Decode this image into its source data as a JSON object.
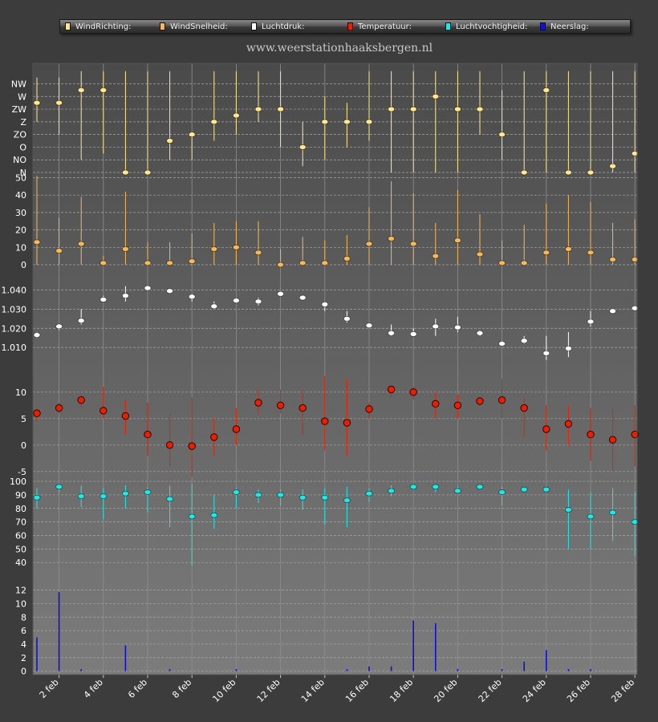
{
  "site": {
    "title": "www.weerstationhaaksbergen.nl"
  },
  "legend": [
    {
      "label": "WindRichting:",
      "color": "#ffe890"
    },
    {
      "label": "WindSnelheid:",
      "color": "#f5b85a"
    },
    {
      "label": "Luchtdruk:",
      "color": "#ffffff"
    },
    {
      "label": "Temperatuur:",
      "color": "#e82000"
    },
    {
      "label": "Luchtvochtigheid:",
      "color": "#20e8e8"
    },
    {
      "label": "Neerslag:",
      "color": "#1010d0"
    }
  ],
  "chart_data": {
    "type": "scatter",
    "x_days": [
      1,
      2,
      3,
      4,
      5,
      6,
      7,
      8,
      9,
      10,
      11,
      12,
      13,
      14,
      15,
      16,
      17,
      18,
      19,
      20,
      21,
      22,
      23,
      24,
      25,
      26,
      27,
      28
    ],
    "x_tick_labels": [
      "2 feb",
      "4 feb",
      "6 feb",
      "8 feb",
      "10 feb",
      "12 feb",
      "14 feb",
      "16 feb",
      "18 feb",
      "20 feb",
      "22 feb",
      "24 feb",
      "26 feb",
      "28 feb"
    ],
    "grid": true,
    "panels": [
      {
        "id": "wind_direction",
        "name": "WindRichting",
        "color": "#ffe890",
        "marker": "dot",
        "categories": [
          "N",
          "NO",
          "O",
          "ZO",
          "Z",
          "ZW",
          "W",
          "NW"
        ],
        "tick_labels": [
          "N",
          "NO",
          "O",
          "ZO",
          "Z",
          "ZW",
          "W",
          "NW"
        ],
        "ylim": [
          0,
          7
        ],
        "values": [
          5.5,
          5.5,
          6.5,
          6.5,
          0,
          0,
          2.5,
          3,
          4,
          4.5,
          5,
          5,
          2,
          4,
          4,
          4,
          5,
          5,
          6,
          5,
          5,
          3,
          0,
          6.5,
          0,
          0,
          0.5,
          1.5
        ],
        "low": [
          4,
          3,
          1,
          1.5,
          0,
          0,
          1,
          1,
          2.5,
          3,
          4,
          2,
          0.5,
          1,
          2,
          2.5,
          0,
          0,
          0,
          0,
          3,
          1,
          0,
          0,
          0,
          0,
          0,
          0
        ],
        "high": [
          7.5,
          7.5,
          8,
          8,
          8,
          8,
          8,
          3,
          8,
          8,
          8,
          8,
          4,
          6,
          5.5,
          8,
          8,
          8,
          8,
          8,
          8,
          6.5,
          8,
          8,
          8,
          8,
          8,
          8
        ]
      },
      {
        "id": "wind_speed",
        "name": "WindSnelheid",
        "color": "#f5b85a",
        "marker": "dot",
        "tick_labels": [
          "0",
          "10",
          "20",
          "30",
          "40",
          "50"
        ],
        "ticks": [
          0,
          10,
          20,
          30,
          40,
          50
        ],
        "ylim": [
          0,
          50
        ],
        "values": [
          13,
          8,
          12,
          1,
          9,
          1,
          1,
          2,
          9,
          10,
          7,
          0,
          1,
          1,
          3.5,
          12,
          15,
          12,
          5,
          14,
          6,
          1,
          1,
          7,
          9,
          7,
          3,
          3
        ],
        "low": [
          0,
          0,
          0,
          0,
          0,
          0,
          0,
          0,
          0,
          0,
          0,
          0,
          0,
          0,
          0,
          0,
          0,
          0,
          0,
          0,
          0,
          0,
          0,
          0,
          0,
          0,
          0,
          0
        ],
        "high": [
          51,
          27,
          39,
          5,
          42,
          13,
          13,
          18,
          24,
          25,
          25,
          9,
          16,
          14,
          17,
          33,
          48,
          41,
          24,
          43,
          29,
          14,
          23,
          35,
          40,
          36,
          24,
          26
        ]
      },
      {
        "id": "pressure",
        "name": "Luchtdruk",
        "color": "#ffffff",
        "marker": "dot",
        "tick_labels": [
          "1.010",
          "1.020",
          "1.030",
          "1.040"
        ],
        "ticks": [
          1.01,
          1.02,
          1.03,
          1.04
        ],
        "ylim": [
          0.9975,
          1.049
        ],
        "values": [
          1.0165,
          1.021,
          1.024,
          1.035,
          1.037,
          1.041,
          1.0395,
          1.0365,
          1.0315,
          1.0345,
          1.034,
          1.038,
          1.036,
          1.0325,
          1.025,
          1.0215,
          1.0175,
          1.017,
          1.021,
          1.0205,
          1.0175,
          1.012,
          1.0135,
          1.007,
          1.0095,
          1.0235,
          1.029,
          1.0305
        ],
        "low": [
          1.015,
          1.019,
          1.022,
          1.034,
          1.034,
          1.04,
          1.039,
          1.034,
          1.03,
          1.034,
          1.032,
          1.038,
          1.035,
          1.029,
          1.023,
          1.02,
          1.016,
          1.016,
          1.016,
          1.018,
          1.016,
          1.011,
          1.012,
          1.0035,
          1.005,
          1.021,
          1.0285,
          1.03
        ],
        "high": [
          1.018,
          1.022,
          1.03,
          1.037,
          1.042,
          1.0415,
          1.04,
          1.038,
          1.034,
          1.035,
          1.036,
          1.039,
          1.037,
          1.033,
          1.029,
          1.022,
          1.022,
          1.02,
          1.025,
          1.026,
          1.019,
          1.0135,
          1.016,
          1.016,
          1.018,
          1.029,
          1.03,
          1.031
        ]
      },
      {
        "id": "temperature",
        "name": "Temperatuur",
        "color": "#e82000",
        "marker": "ring",
        "tick_labels": [
          "-5",
          "0",
          "5",
          "10"
        ],
        "ticks": [
          -5,
          0,
          5,
          10
        ],
        "ylim": [
          -7,
          13
        ],
        "values": [
          6,
          7,
          8.5,
          6.5,
          5.5,
          2,
          0,
          -0.2,
          1.5,
          3,
          8,
          7.5,
          7,
          4.5,
          4.2,
          6.8,
          10.5,
          10,
          7.8,
          7.5,
          8.3,
          8.5,
          7,
          3,
          4,
          2,
          1,
          2
        ],
        "low": [
          4.5,
          6,
          7,
          5,
          2,
          -2,
          -4,
          -6,
          -2,
          0,
          6,
          6,
          2,
          -1,
          -2,
          5,
          9,
          8.5,
          5,
          5,
          7.5,
          5,
          1.5,
          -1,
          0,
          -3,
          -5,
          -4
        ],
        "high": [
          7,
          8,
          9.5,
          11,
          8.5,
          8,
          6,
          9,
          5,
          7,
          10.5,
          10.5,
          10.5,
          13,
          12.5,
          8,
          11,
          11,
          10,
          9.5,
          9,
          12.5,
          9,
          7.5,
          7.5,
          7,
          7,
          7.5
        ]
      },
      {
        "id": "humidity",
        "name": "Luchtvochtigheid",
        "color": "#20e8e8",
        "marker": "dot",
        "tick_labels": [
          "40",
          "50",
          "60",
          "70",
          "80",
          "90",
          "100"
        ],
        "ticks": [
          40,
          50,
          60,
          70,
          80,
          90,
          100
        ],
        "ylim": [
          33,
          103
        ],
        "values": [
          88,
          96,
          89,
          89,
          91,
          92,
          87,
          74,
          75,
          92,
          90,
          90,
          88,
          88,
          86,
          91,
          93,
          96,
          96,
          93,
          96,
          92,
          94,
          94,
          79,
          74,
          77,
          70
        ],
        "low": [
          80,
          92,
          81,
          72,
          80,
          77,
          66,
          38,
          65,
          80,
          84,
          82,
          79,
          68,
          66,
          85,
          89,
          94,
          92,
          92,
          94,
          82,
          92,
          92,
          50,
          50,
          56,
          45
        ],
        "high": [
          95,
          98,
          97,
          95,
          97,
          95,
          97,
          98,
          90,
          95,
          94,
          94,
          94,
          95,
          96,
          95,
          97,
          98,
          98,
          96,
          98,
          96,
          96,
          96,
          94,
          92,
          95,
          92
        ]
      },
      {
        "id": "precipitation",
        "name": "Neerslag",
        "color": "#1010d0",
        "marker": "bar",
        "tick_labels": [
          "0",
          "2",
          "4",
          "6",
          "8",
          "10",
          "12"
        ],
        "ticks": [
          0,
          2,
          4,
          6,
          8,
          10,
          12
        ],
        "ylim": [
          -1,
          13.5
        ],
        "values": [
          5,
          11.7,
          0.3,
          0,
          3.8,
          0,
          0.3,
          0,
          0,
          0.3,
          0,
          0,
          0,
          0,
          0.3,
          0.7,
          0.7,
          7.5,
          7.1,
          0.3,
          0,
          0.3,
          1.4,
          3.1,
          0.3,
          0.3,
          0,
          0
        ]
      }
    ]
  }
}
